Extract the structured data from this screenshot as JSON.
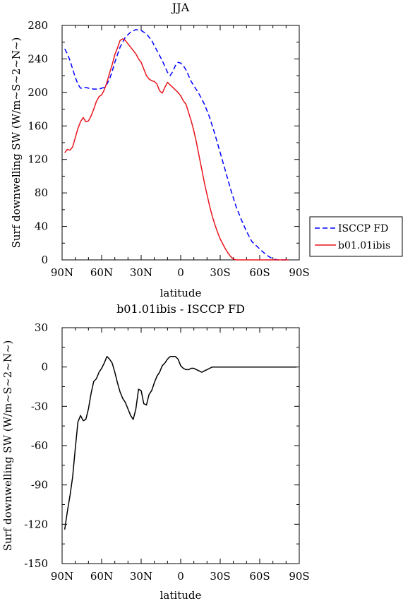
{
  "charts": [
    {
      "type": "line",
      "title": "JJA",
      "xlabel": "latitude",
      "ylabel": "Surf downwelling SW (W/m~S~2~N~)",
      "xlim": [
        90,
        -90
      ],
      "ylim": [
        0,
        280
      ],
      "xticks": [
        {
          "value": 90,
          "label": "90N"
        },
        {
          "value": 60,
          "label": "60N"
        },
        {
          "value": 30,
          "label": "30N"
        },
        {
          "value": 0,
          "label": "0"
        },
        {
          "value": -30,
          "label": "30S"
        },
        {
          "value": -60,
          "label": "60S"
        },
        {
          "value": -90,
          "label": "90S"
        }
      ],
      "yticks": [
        0,
        40,
        80,
        120,
        160,
        200,
        240,
        280
      ],
      "legend": {
        "placement": "right"
      },
      "series": [
        {
          "name": "ISCCP FD",
          "color": "#0000ff",
          "dash": "dashed",
          "x": [
            88,
            86,
            84,
            82,
            80,
            78,
            76,
            74,
            72,
            70,
            66,
            62,
            58,
            56,
            54,
            52,
            50,
            46,
            42,
            38,
            34,
            30,
            26,
            22,
            18,
            14,
            10,
            8,
            6,
            4,
            2,
            0,
            -2,
            -4,
            -6,
            -8,
            -10,
            -14,
            -18,
            -22,
            -26,
            -30,
            -34,
            -38,
            -42,
            -46,
            -50,
            -54,
            -58,
            -62,
            -66,
            -70,
            -74,
            -78,
            -82
          ],
          "y": [
            252,
            246,
            238,
            228,
            218,
            210,
            205,
            205,
            206,
            205,
            204,
            204,
            206,
            210,
            216,
            225,
            236,
            254,
            266,
            272,
            275,
            274,
            270,
            262,
            250,
            238,
            224,
            220,
            225,
            232,
            236,
            235,
            232,
            227,
            220,
            213,
            208,
            198,
            186,
            170,
            150,
            128,
            106,
            84,
            64,
            48,
            34,
            22,
            16,
            10,
            5,
            1,
            0,
            0,
            0
          ]
        },
        {
          "name": "b01.01ibis",
          "color": "#e8141c",
          "dash": "solid",
          "x": [
            88,
            86,
            84,
            82,
            80,
            78,
            76,
            74,
            72,
            70,
            68,
            66,
            64,
            62,
            60,
            58,
            56,
            54,
            52,
            50,
            48,
            46,
            44,
            42,
            40,
            38,
            36,
            34,
            32,
            30,
            28,
            26,
            24,
            22,
            20,
            18,
            16,
            14,
            12,
            10,
            8,
            6,
            4,
            2,
            0,
            -2,
            -4,
            -6,
            -8,
            -10,
            -12,
            -14,
            -16,
            -18,
            -20,
            -22,
            -24,
            -26,
            -28,
            -30,
            -32,
            -34,
            -36,
            -38,
            -40,
            -42,
            -44,
            -46,
            -48,
            -50,
            -52,
            -54,
            -56,
            -58,
            -60,
            -62,
            -64,
            -66,
            -68,
            -70,
            -72,
            -74,
            -76,
            -78,
            -80,
            -82
          ],
          "y": [
            128,
            132,
            131,
            135,
            146,
            157,
            165,
            170,
            165,
            166,
            172,
            180,
            189,
            195,
            197,
            203,
            212,
            223,
            233,
            245,
            253,
            262,
            264,
            262,
            258,
            254,
            250,
            246,
            240,
            236,
            228,
            220,
            216,
            214,
            213,
            210,
            202,
            199,
            206,
            212,
            209,
            206,
            203,
            200,
            196,
            190,
            186,
            176,
            166,
            154,
            140,
            124,
            108,
            92,
            78,
            64,
            52,
            42,
            33,
            25,
            19,
            13,
            8,
            4,
            1,
            0,
            0,
            0,
            0,
            0,
            0,
            0,
            0,
            0,
            0,
            0,
            0,
            0,
            0,
            0,
            0,
            0,
            0,
            0,
            0,
            0
          ]
        }
      ]
    },
    {
      "type": "line",
      "title": "b01.01ibis - ISCCP FD",
      "xlabel": "latitude",
      "ylabel": "Surf downwelling SW (W/m~S~2~N~)",
      "xlim": [
        90,
        -90
      ],
      "ylim": [
        -150,
        30
      ],
      "xticks": [
        {
          "value": 90,
          "label": "90N"
        },
        {
          "value": 60,
          "label": "60N"
        },
        {
          "value": 30,
          "label": "30N"
        },
        {
          "value": 0,
          "label": "0"
        },
        {
          "value": -30,
          "label": "30S"
        },
        {
          "value": -60,
          "label": "60S"
        },
        {
          "value": -90,
          "label": "90S"
        }
      ],
      "yticks": [
        -150,
        -120,
        -90,
        -60,
        -30,
        0,
        30
      ],
      "series": [
        {
          "color": "#000000",
          "dash": "solid",
          "x": [
            88,
            86,
            84,
            82,
            80,
            78,
            76,
            74,
            72,
            70,
            68,
            66,
            64,
            62,
            60,
            58,
            56,
            54,
            52,
            50,
            48,
            46,
            44,
            42,
            40,
            38,
            36,
            34,
            32,
            30,
            28,
            26,
            24,
            22,
            20,
            18,
            16,
            14,
            12,
            10,
            8,
            6,
            4,
            2,
            0,
            -2,
            -4,
            -6,
            -8,
            -10,
            -12,
            -14,
            -16,
            -18,
            -20,
            -22,
            -24,
            -26,
            -28,
            -30,
            -32,
            -34,
            -36,
            -38,
            -40,
            -44,
            -48,
            -52,
            -56,
            -60,
            -64,
            -68,
            -72,
            -76,
            -80,
            -84,
            -88
          ],
          "y": [
            -124,
            -110,
            -98,
            -84,
            -62,
            -42,
            -37,
            -41,
            -40,
            -32,
            -20,
            -11,
            -9,
            -4,
            -1,
            3,
            8,
            6,
            3,
            -4,
            -12,
            -19,
            -24,
            -27,
            -32,
            -37,
            -40,
            -32,
            -17,
            -18,
            -28,
            -29,
            -21,
            -18,
            -12,
            -7,
            -4,
            1,
            3,
            6,
            8,
            8,
            8,
            6,
            1,
            -1,
            -2,
            -2,
            -1,
            -1,
            -2,
            -3,
            -4,
            -3,
            -2,
            -1,
            0,
            0,
            0,
            0,
            0,
            0,
            0,
            0,
            0,
            0,
            0,
            0,
            0,
            0,
            0,
            0,
            0,
            0,
            0,
            0,
            0
          ]
        }
      ]
    }
  ]
}
